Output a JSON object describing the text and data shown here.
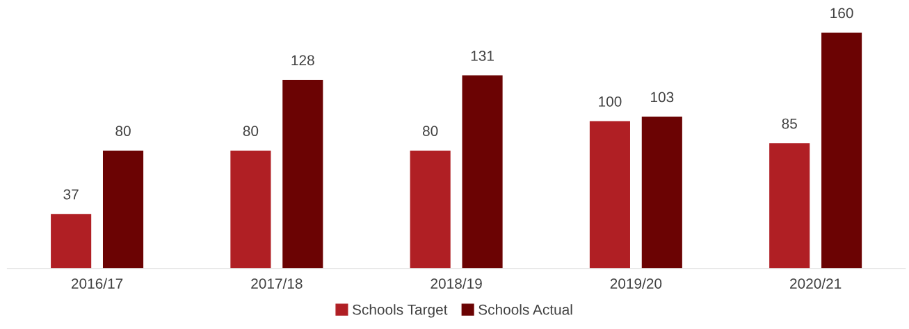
{
  "chart_data": {
    "type": "bar",
    "categories": [
      "2016/17",
      "2017/18",
      "2018/19",
      "2019/20",
      "2020/21"
    ],
    "series": [
      {
        "name": "Schools Target",
        "color": "#b01f24",
        "values": [
          37,
          80,
          80,
          100,
          85
        ]
      },
      {
        "name": "Schools Actual",
        "color": "#6b0303",
        "values": [
          80,
          128,
          131,
          103,
          160
        ]
      }
    ],
    "data_labels": true,
    "legend": "bottom",
    "grid": false
  }
}
